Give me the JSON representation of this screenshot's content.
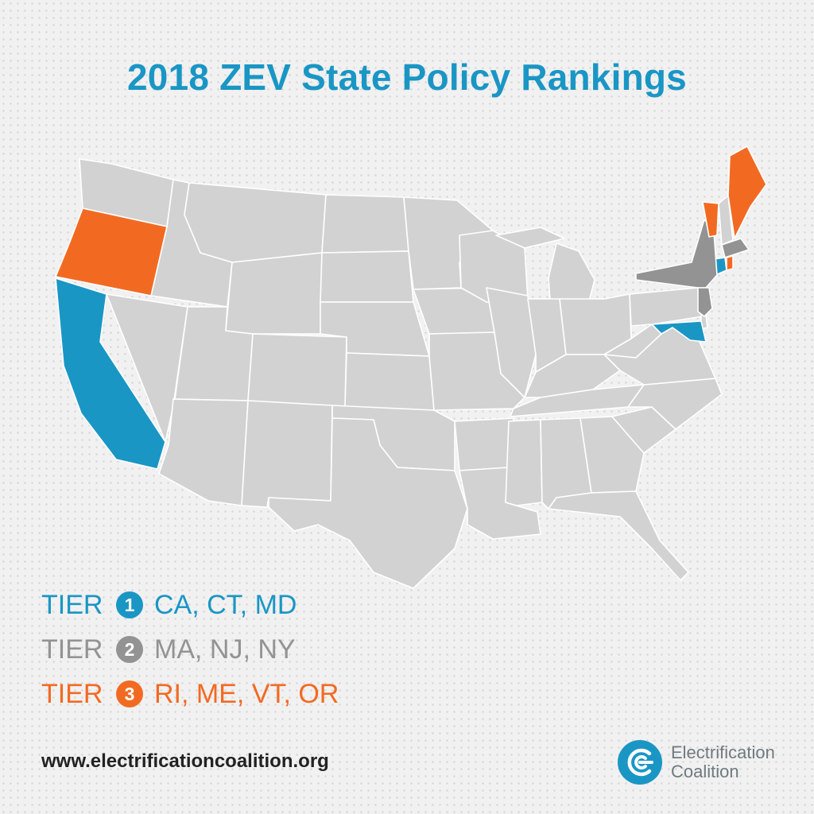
{
  "title": "2018 ZEV State Policy Rankings",
  "colors": {
    "tier1": "#1a96c5",
    "tier2": "#939393",
    "tier3": "#f26a22",
    "base_state": "#d2d2d2",
    "state_border": "#ffffff"
  },
  "tiers": [
    {
      "label": "TIER",
      "number": "1",
      "states": "CA, CT, MD",
      "color": "#1a96c5"
    },
    {
      "label": "TIER",
      "number": "2",
      "states": "MA, NJ, NY",
      "color": "#939393"
    },
    {
      "label": "TIER",
      "number": "3",
      "states": "RI, ME, VT, OR",
      "color": "#f26a22"
    }
  ],
  "map_states": {
    "tier1": [
      "CA",
      "CT",
      "MD"
    ],
    "tier2": [
      "MA",
      "NJ",
      "NY"
    ],
    "tier3": [
      "RI",
      "ME",
      "VT",
      "OR"
    ]
  },
  "website": "www.electrificationcoalition.org",
  "brand": {
    "line1": "Electrification",
    "line2": "Coalition",
    "icon": "electrification-coalition-logo-icon"
  }
}
